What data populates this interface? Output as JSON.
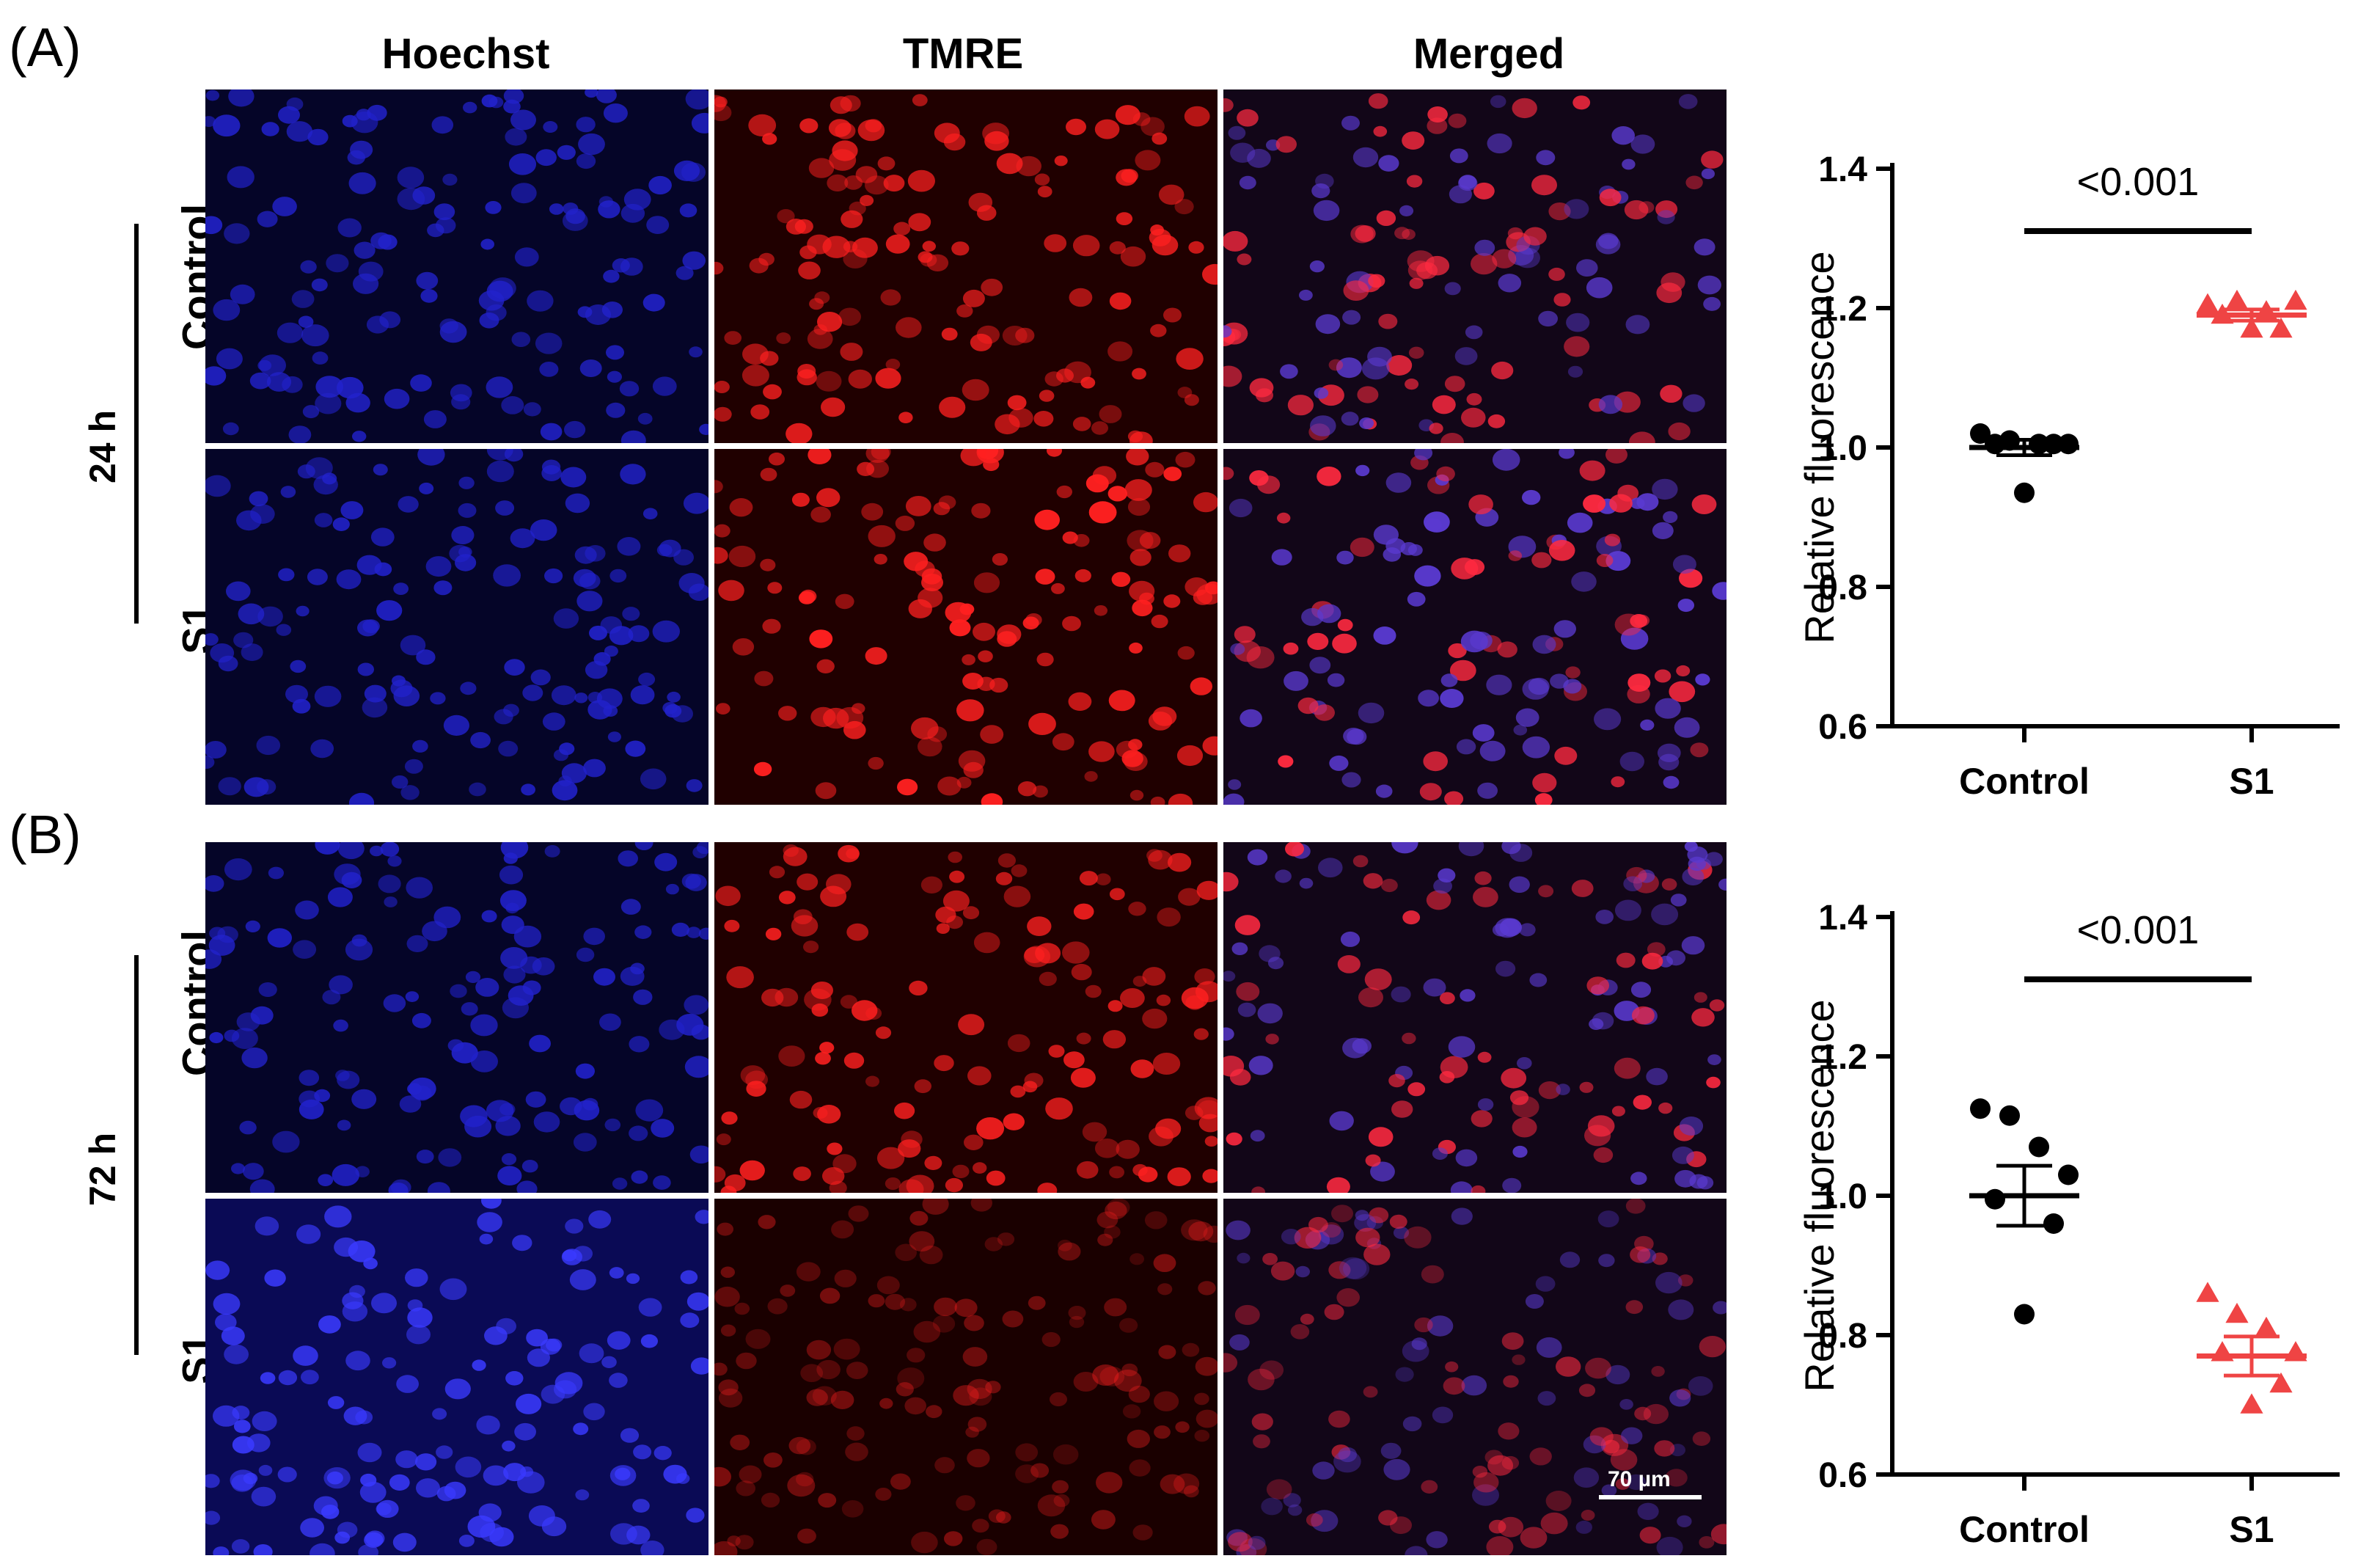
{
  "figure": {
    "panel_a_label": "(A)",
    "panel_b_label": "(B)",
    "columns": [
      "Hoechst",
      "TMRE",
      "Merged"
    ],
    "panel_a": {
      "time": "24 h",
      "rows": [
        "Control",
        "S1"
      ]
    },
    "panel_b": {
      "time": "72 h",
      "rows": [
        "Control",
        "S1"
      ]
    },
    "scale_bar": "70 µm"
  },
  "colors": {
    "control": "#000000",
    "s1": "#ef4444",
    "hoechst": "#1a1aff",
    "tmre": "#ff1a1a"
  },
  "chart_data": [
    {
      "type": "scatter",
      "panel": "A",
      "ylabel": "Relative fluorescence",
      "xlabel": "",
      "categories": [
        "Control",
        "S1"
      ],
      "ylim": [
        0.6,
        1.4
      ],
      "yticks": [
        "0.6",
        "0.8",
        "1.0",
        "1.2",
        "1.4"
      ],
      "annotation": "<0.001",
      "series": [
        {
          "name": "Control",
          "marker": "circle",
          "color": "#000000",
          "mean": 1.0,
          "sem": 0.011,
          "values": [
            1.02,
            1.01,
            1.005,
            1.005,
            1.005,
            1.005,
            0.935
          ]
        },
        {
          "name": "S1",
          "marker": "triangle",
          "color": "#ef4444",
          "mean": 1.19,
          "sem": 0.008,
          "values": [
            1.205,
            1.21,
            1.195,
            1.21,
            1.19,
            1.17,
            1.17
          ]
        }
      ]
    },
    {
      "type": "scatter",
      "panel": "B",
      "ylabel": "Relative  fluorescence",
      "xlabel": "",
      "categories": [
        "Control",
        "S1"
      ],
      "ylim": [
        0.6,
        1.4
      ],
      "yticks": [
        "0.6",
        "0.8",
        "1.0",
        "1.2",
        "1.4"
      ],
      "annotation": "<0.001",
      "series": [
        {
          "name": "Control",
          "marker": "circle",
          "color": "#000000",
          "mean": 1.0,
          "sem": 0.043,
          "values": [
            1.125,
            1.115,
            1.07,
            1.03,
            0.995,
            0.96,
            0.83
          ]
        },
        {
          "name": "S1",
          "marker": "triangle",
          "color": "#ef4444",
          "mean": 0.77,
          "sem": 0.028,
          "values": [
            0.86,
            0.83,
            0.81,
            0.775,
            0.775,
            0.73,
            0.7
          ]
        }
      ]
    }
  ]
}
